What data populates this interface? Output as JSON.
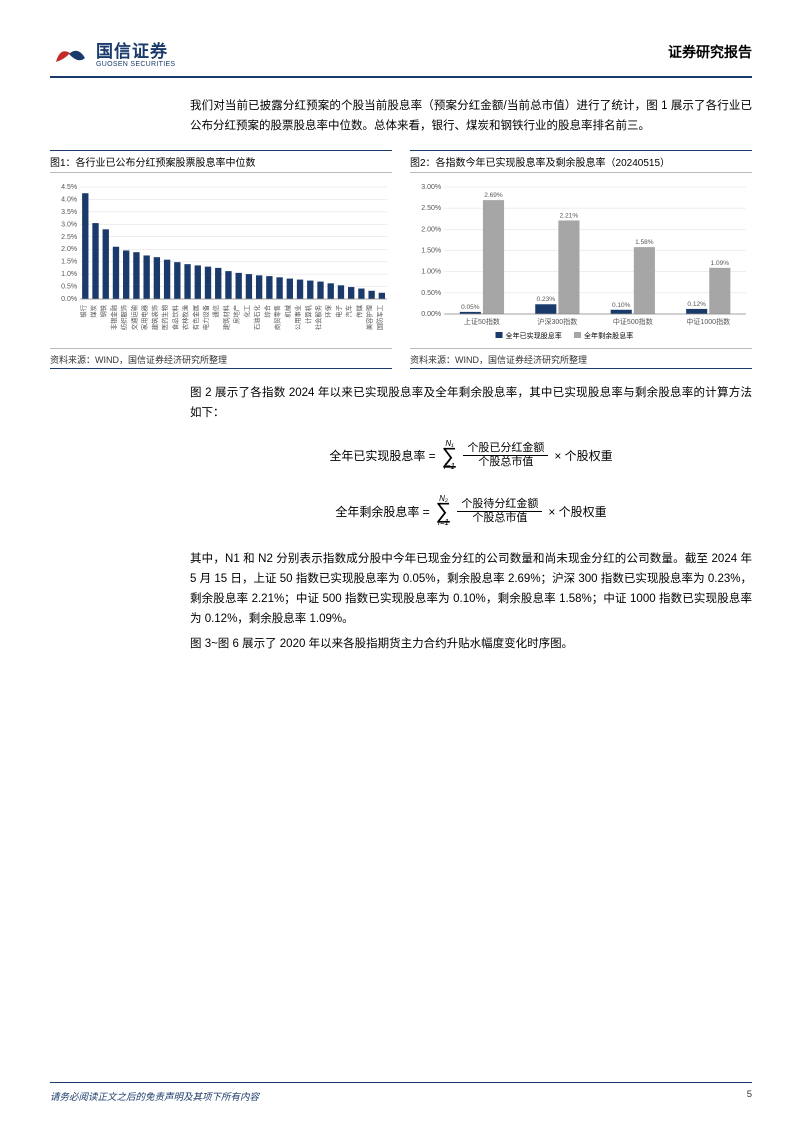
{
  "header": {
    "logo_cn": "国信证券",
    "logo_en": "GUOSEN SECURITIES",
    "report_type": "证券研究报告"
  },
  "para1": "我们对当前已披露分红预案的个股当前股息率（预案分红金额/当前总市值）进行了统计，图 1 展示了各行业已公布分红预案的股票股息率中位数。总体来看，银行、煤炭和钢铁行业的股息率排名前三。",
  "fig1": {
    "title": "图1：各行业已公布分红预案股票股息率中位数",
    "source": "资料来源：WIND，国信证券经济研究所整理",
    "type": "bar",
    "ylabel_ticks": [
      "0.0%",
      "0.5%",
      "1.0%",
      "1.5%",
      "2.0%",
      "2.5%",
      "3.0%",
      "3.5%",
      "4.0%",
      "4.5%"
    ],
    "ylim_max": 4.5,
    "bar_color": "#1a3a6b",
    "grid_color": "#dddddd",
    "categories": [
      "银行",
      "煤炭",
      "钢铁",
      "非银金融",
      "纺织服饰",
      "交通运输",
      "家用电器",
      "建筑装饰",
      "医药生物",
      "食品饮料",
      "农林牧渔",
      "有色金属",
      "电力设备",
      "通信",
      "建筑材料",
      "房地产",
      "化工",
      "石油石化",
      "综合",
      "商贸零售",
      "机械",
      "公用事业",
      "计算机",
      "社会服务",
      "环保",
      "电子",
      "汽车",
      "传媒",
      "美容护理",
      "国防军工"
    ],
    "values": [
      4.25,
      3.05,
      2.8,
      2.1,
      1.95,
      1.88,
      1.75,
      1.68,
      1.58,
      1.48,
      1.4,
      1.35,
      1.3,
      1.25,
      1.12,
      1.05,
      1.0,
      0.95,
      0.92,
      0.87,
      0.82,
      0.78,
      0.74,
      0.7,
      0.63,
      0.55,
      0.48,
      0.42,
      0.33,
      0.25
    ]
  },
  "fig2": {
    "title": "图2：各指数今年已实现股息率及剩余股息率（20240515）",
    "source": "资料来源：WIND，国信证券经济研究所整理",
    "type": "grouped-bar",
    "ylabel_ticks": [
      "0.00%",
      "0.50%",
      "1.00%",
      "1.50%",
      "2.00%",
      "2.50%",
      "3.00%"
    ],
    "ylim_max": 3.0,
    "grid_color": "#dddddd",
    "categories": [
      "上证50指数",
      "沪深300指数",
      "中证500指数",
      "中证1000指数"
    ],
    "series": [
      {
        "name": "全年已实现股息率",
        "color": "#1a3a6b",
        "values": [
          0.05,
          0.23,
          0.1,
          0.12
        ]
      },
      {
        "name": "全年剩余股息率",
        "color": "#a6a6a6",
        "values": [
          2.69,
          2.21,
          1.58,
          1.09
        ]
      }
    ],
    "legend_marker_size": 6
  },
  "para2": "图 2 展示了各指数 2024 年以来已实现股息率及全年剩余股息率，其中已实现股息率与剩余股息率的计算方法如下：",
  "formula1": {
    "lhs": "全年已实现股息率 =",
    "sum_top": "N₁",
    "sum_bot": "i=1",
    "frac_num": "个股已分红金额",
    "frac_den": "个股总市值",
    "tail": "× 个股权重"
  },
  "formula2": {
    "lhs": "全年剩余股息率 =",
    "sum_top": "N₂",
    "sum_bot": "i=1",
    "frac_num": "个股待分红金额",
    "frac_den": "个股总市值",
    "tail": "× 个股权重"
  },
  "para3": "其中，N1 和 N2 分别表示指数成分股中今年已现金分红的公司数量和尚未现金分红的公司数量。截至 2024 年 5 月 15 日，上证 50 指数已实现股息率为 0.05%，剩余股息率 2.69%；沪深 300 指数已实现股息率为 0.23%，剩余股息率 2.21%；中证 500 指数已实现股息率为 0.10%，剩余股息率 1.58%；中证 1000 指数已实现股息率为 0.12%，剩余股息率 1.09%。",
  "para4": "图 3~图 6 展示了 2020 年以来各股指期货主力合约升贴水幅度变化时序图。",
  "footer": {
    "disclaimer": "请务必阅读正文之后的免责声明及其项下所有内容",
    "page": "5"
  }
}
